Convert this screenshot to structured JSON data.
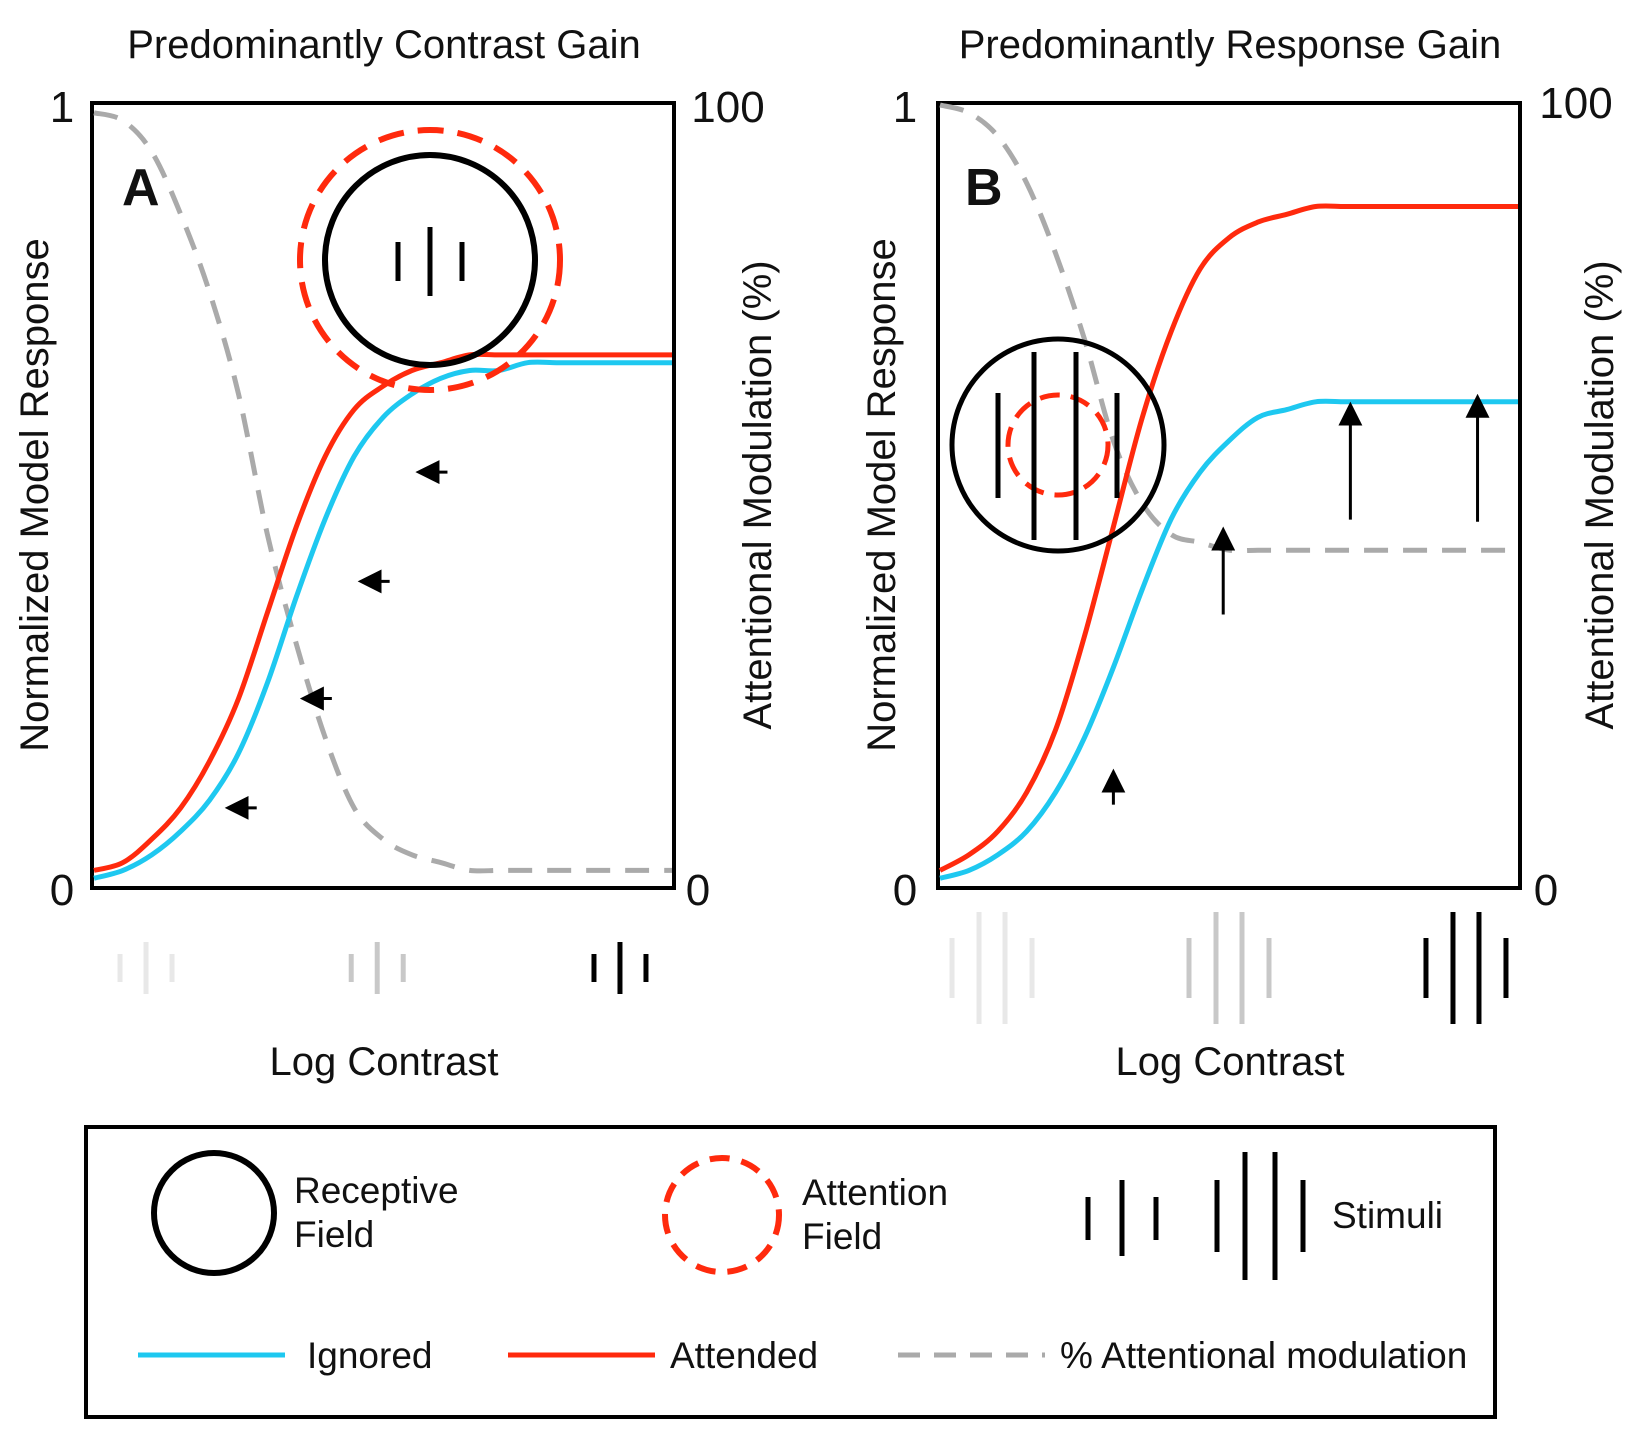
{
  "colors": {
    "ignored": "#1ec8f0",
    "attended": "#ff2a0d",
    "modulation": "#aaaaaa",
    "frame": "#000000"
  },
  "legend": {
    "receptive_field": [
      "Receptive",
      "Field"
    ],
    "attention_field": [
      "Attention",
      "Field"
    ],
    "stimuli": "Stimuli",
    "ignored": "Ignored",
    "attended": "Attended",
    "modulation": "% Attentional modulation",
    "icons": [
      "receptive-field-circle",
      "attention-field-dashed-circle",
      "stimulus-bars"
    ]
  },
  "chart_data": [
    {
      "type": "line",
      "panel": "A",
      "title": "Predominantly Contrast Gain",
      "xlabel": "Log Contrast",
      "ylabel": "Normalized Model Response",
      "y2label": "Attentional Modulation (%)",
      "ylim": [
        0,
        1
      ],
      "y2lim": [
        0,
        100
      ],
      "yticks": [
        "0",
        "1"
      ],
      "y2ticks": [
        "0",
        "100"
      ],
      "x": [
        0,
        0.05,
        0.1,
        0.15,
        0.2,
        0.25,
        0.3,
        0.35,
        0.4,
        0.45,
        0.5,
        0.55,
        0.6,
        0.65,
        0.7,
        0.75,
        0.8,
        0.85,
        0.9,
        0.95,
        1
      ],
      "series": [
        {
          "name": "Ignored",
          "role": "ignored",
          "axis": "left",
          "values": [
            0.01,
            0.02,
            0.04,
            0.07,
            0.11,
            0.17,
            0.26,
            0.37,
            0.47,
            0.55,
            0.6,
            0.63,
            0.65,
            0.66,
            0.66,
            0.67,
            0.67,
            0.67,
            0.67,
            0.67,
            0.67
          ]
        },
        {
          "name": "Attended",
          "role": "attended",
          "axis": "left",
          "values": [
            0.02,
            0.03,
            0.06,
            0.1,
            0.16,
            0.24,
            0.35,
            0.46,
            0.55,
            0.61,
            0.64,
            0.66,
            0.67,
            0.68,
            0.68,
            0.68,
            0.68,
            0.68,
            0.68,
            0.68,
            0.68
          ]
        },
        {
          "name": "% Attentional modulation",
          "role": "modulation",
          "axis": "right",
          "values": [
            99,
            98,
            94,
            86,
            76,
            63,
            45,
            31,
            19,
            10,
            6,
            4,
            3,
            2,
            2,
            2,
            2,
            2,
            2,
            2,
            2
          ]
        }
      ],
      "arrows": [
        {
          "x": 0.24,
          "y": 0.1,
          "direction": "left"
        },
        {
          "x": 0.37,
          "y": 0.24,
          "direction": "left"
        },
        {
          "x": 0.47,
          "y": 0.39,
          "direction": "left"
        },
        {
          "x": 0.57,
          "y": 0.53,
          "direction": "left"
        }
      ],
      "stimuli": [
        {
          "x": 0.09,
          "shade": "#e8e8e8",
          "size": "small"
        },
        {
          "x": 0.49,
          "shade": "#c8c8c8",
          "size": "small"
        },
        {
          "x": 0.91,
          "shade": "#000000",
          "size": "small"
        }
      ],
      "inset": {
        "receptive_field": "large",
        "attention_field": "surrounding",
        "stimulus": "small"
      }
    },
    {
      "type": "line",
      "panel": "B",
      "title": "Predominantly Response Gain",
      "xlabel": "Log Contrast",
      "ylabel": "Normalized Model Response",
      "y2label": "Attentional Modulation (%)",
      "ylim": [
        0,
        1
      ],
      "y2lim": [
        0,
        100
      ],
      "yticks": [
        "0",
        "1"
      ],
      "y2ticks": [
        "0",
        "100"
      ],
      "x": [
        0,
        0.05,
        0.1,
        0.15,
        0.2,
        0.25,
        0.3,
        0.35,
        0.4,
        0.45,
        0.5,
        0.55,
        0.6,
        0.65,
        0.7,
        0.75,
        0.8,
        0.85,
        0.9,
        0.95,
        1
      ],
      "series": [
        {
          "name": "Ignored",
          "role": "ignored",
          "axis": "left",
          "values": [
            0.01,
            0.02,
            0.04,
            0.07,
            0.12,
            0.19,
            0.28,
            0.38,
            0.47,
            0.53,
            0.57,
            0.6,
            0.61,
            0.62,
            0.62,
            0.62,
            0.62,
            0.62,
            0.62,
            0.62,
            0.62
          ]
        },
        {
          "name": "Attended",
          "role": "attended",
          "axis": "left",
          "values": [
            0.02,
            0.04,
            0.07,
            0.12,
            0.2,
            0.32,
            0.46,
            0.6,
            0.71,
            0.79,
            0.83,
            0.85,
            0.86,
            0.87,
            0.87,
            0.87,
            0.87,
            0.87,
            0.87,
            0.87,
            0.87
          ]
        },
        {
          "name": "% Attentional modulation",
          "role": "modulation",
          "axis": "right",
          "values": [
            100,
            99,
            96,
            90,
            81,
            70,
            57,
            49,
            45,
            44,
            43,
            43,
            43,
            43,
            43,
            43,
            43,
            43,
            43,
            43,
            43
          ]
        }
      ],
      "arrows": [
        {
          "x": 0.3,
          "y": 0.14,
          "direction": "up"
        },
        {
          "x": 0.49,
          "y": 0.45,
          "direction": "up"
        },
        {
          "x": 0.71,
          "y": 0.61,
          "direction": "up"
        },
        {
          "x": 0.93,
          "y": 0.62,
          "direction": "up"
        }
      ],
      "stimuli": [
        {
          "x": 0.09,
          "shade": "#e8e8e8",
          "size": "large"
        },
        {
          "x": 0.5,
          "shade": "#c8c8c8",
          "size": "large"
        },
        {
          "x": 0.91,
          "shade": "#000000",
          "size": "large"
        }
      ],
      "inset": {
        "receptive_field": "small",
        "attention_field": "inside",
        "stimulus": "large"
      }
    }
  ]
}
